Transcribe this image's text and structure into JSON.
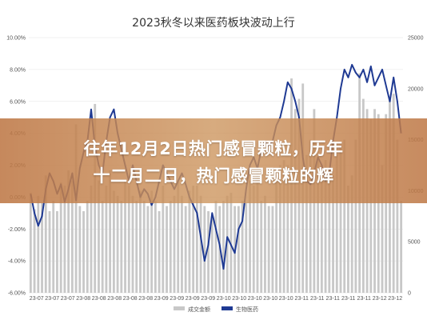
{
  "chart_data": {
    "type": "bar+line",
    "title": "2023秋冬以来医药板块波动上行",
    "left_axis": {
      "ticks": [
        "10.00%",
        "8.00%",
        "6.00%",
        "4.00%",
        "2.00%",
        "0.00%",
        "-2.00%",
        "-4.00%",
        "-6.00%"
      ],
      "ylim": [
        -6,
        10
      ]
    },
    "right_axis": {
      "ticks": [
        "25000",
        "20000",
        "15000",
        "10000",
        "5000",
        "0"
      ],
      "ylim": [
        0,
        25000
      ]
    },
    "x_tick_labels": [
      "23-07",
      "23-07",
      "23-07",
      "23-08",
      "23-08",
      "23-08",
      "23-08",
      "23-08",
      "23-09",
      "23-09",
      "23-09",
      "23-09",
      "23-10",
      "23-10",
      "23-10",
      "23-10",
      "23-10",
      "23-11",
      "23-11",
      "23-11",
      "23-11",
      "23-11",
      "23-12",
      "23-12"
    ],
    "series": [
      {
        "name": "成交金额",
        "type": "bar",
        "axis": "right",
        "color": "#c8c8c8",
        "values": [
          9800,
          8200,
          9500,
          8800,
          11500,
          8000,
          9000,
          8000,
          10800,
          10500,
          12000,
          11000,
          16500,
          8500,
          8000,
          9000,
          10500,
          18500,
          11000,
          9000,
          10500,
          12000,
          10000,
          9500,
          9000,
          11000,
          10500,
          9500,
          9000,
          10000,
          9000,
          8500,
          10000,
          9000,
          8000,
          10500,
          8500,
          9000,
          9500,
          11000,
          9500,
          8500,
          10000,
          10500,
          10500,
          9500,
          8500,
          8000,
          7500,
          9000,
          8500,
          9000,
          9500,
          9800,
          8500,
          8500,
          9000,
          8800,
          11000,
          10500,
          12000,
          9000,
          9500,
          8500,
          8500,
          11500,
          12500,
          13000,
          12500,
          21000,
          18000,
          19000,
          20500,
          13500,
          15000,
          18000,
          13000,
          12500,
          13000,
          11500,
          11500,
          13500,
          14500,
          15000,
          10500,
          11500,
          15000,
          21500,
          19000,
          18000,
          17000,
          18000,
          17500,
          12500,
          17500,
          19000,
          19500,
          15000,
          9000
        ]
      },
      {
        "name": "生物医药",
        "type": "line",
        "axis": "left",
        "color": "#1f3a93",
        "values": [
          0.2,
          -1.0,
          -1.8,
          -1.2,
          0.5,
          1.5,
          1.0,
          0.2,
          0.8,
          -0.3,
          0.5,
          1.5,
          -0.2,
          1.8,
          2.8,
          3.5,
          5.5,
          3.2,
          2.0,
          1.5,
          3.5,
          5.0,
          5.5,
          4.0,
          3.0,
          2.0,
          1.0,
          2.0,
          1.0,
          0.0,
          0.5,
          0.2,
          -0.5,
          0.0,
          1.0,
          2.0,
          1.5,
          1.0,
          0.5,
          1.0,
          1.5,
          0.8,
          0.0,
          -0.5,
          -1.0,
          -2.5,
          -4.0,
          -3.0,
          -1.0,
          -2.0,
          -3.0,
          -4.5,
          -2.5,
          -3.0,
          -3.5,
          -2.0,
          -1.5,
          0.5,
          2.0,
          2.5,
          1.8,
          3.0,
          3.5,
          3.2,
          3.5,
          4.5,
          5.0,
          6.0,
          7.2,
          6.8,
          6.0,
          5.0,
          2.5,
          1.0,
          0.8,
          1.5,
          2.5,
          2.0,
          1.0,
          1.5,
          3.5,
          5.0,
          6.8,
          8.0,
          7.5,
          8.3,
          7.8,
          7.5,
          8.0,
          7.2,
          8.2,
          7.0,
          7.5,
          8.0,
          7.0,
          6.0,
          7.5,
          6.0,
          4.0
        ]
      }
    ],
    "legend": [
      "成交金额",
      "生物医药"
    ],
    "legend_position": "bottom"
  },
  "overlay": {
    "line1": "往年12月2日热门感冒颗粒，历年",
    "line2": "十二月二日，热门感冒颗粒的辉"
  }
}
